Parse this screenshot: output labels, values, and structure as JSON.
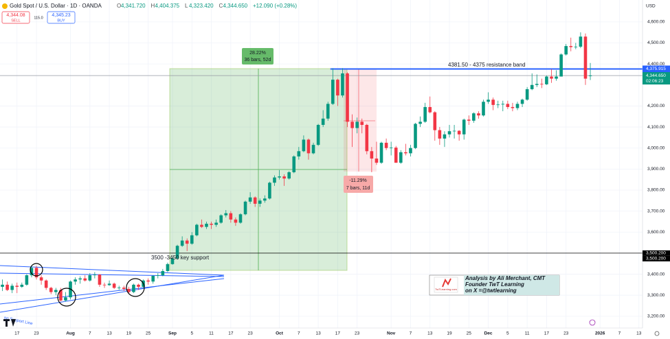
{
  "chart_data": {
    "type": "candlestick",
    "title": "Gold Spot / U.S. Dollar · 1D · OANDA",
    "header_values": [
      {
        "key": "O",
        "label": "4,341.720"
      },
      {
        "key": "H",
        "label": "4,404.375"
      },
      {
        "key": "L",
        "label": "4,323.420"
      },
      {
        "key": "C",
        "label": "4,344.650"
      },
      {
        "key": "",
        "label": "+12.090 (+0.28%)"
      }
    ],
    "trade": {
      "sell_price": "4,344.08",
      "sell": "SELL",
      "spread": "115.0",
      "buy_price": "4,345.23",
      "buy": "BUY"
    },
    "currency": "USD",
    "up_color": "#089981",
    "down_color": "#f23645",
    "xlim": [
      -0.5,
      137.4
    ],
    "ylim": [
      3144,
      4704
    ],
    "xticks": [
      {
        "value": 3,
        "label": "17"
      },
      {
        "value": 7,
        "label": "23"
      },
      {
        "value": 14,
        "label": "Aug"
      },
      {
        "value": 18,
        "label": "7"
      },
      {
        "value": 22,
        "label": "13"
      },
      {
        "value": 26,
        "label": "19"
      },
      {
        "value": 30,
        "label": "25"
      },
      {
        "value": 35,
        "label": "Sep"
      },
      {
        "value": 39,
        "label": "5"
      },
      {
        "value": 43,
        "label": "11"
      },
      {
        "value": 47,
        "label": "17"
      },
      {
        "value": 51,
        "label": "23"
      },
      {
        "value": 57,
        "label": "Oct"
      },
      {
        "value": 61,
        "label": "7"
      },
      {
        "value": 65,
        "label": "13"
      },
      {
        "value": 69,
        "label": "17"
      },
      {
        "value": 73,
        "label": "23"
      },
      {
        "value": 80,
        "label": "Nov"
      },
      {
        "value": 84,
        "label": "7"
      },
      {
        "value": 88,
        "label": "13"
      },
      {
        "value": 92,
        "label": "19"
      },
      {
        "value": 96,
        "label": "25"
      },
      {
        "value": 100,
        "label": "Dec"
      },
      {
        "value": 104,
        "label": "5"
      },
      {
        "value": 108,
        "label": "11"
      },
      {
        "value": 112,
        "label": "17"
      },
      {
        "value": 116,
        "label": "23"
      },
      {
        "value": 123,
        "label": "2026"
      },
      {
        "value": 127,
        "label": "7"
      },
      {
        "value": 131,
        "label": "13"
      }
    ],
    "yticks": [
      {
        "value": 4600,
        "label": "4,600.00"
      },
      {
        "value": 4500,
        "label": "4,500.00"
      },
      {
        "value": 4400,
        "label": "4,400.00"
      },
      {
        "value": 4200,
        "label": "4,200.00"
      },
      {
        "value": 4100,
        "label": "4,100.00"
      },
      {
        "value": 4000,
        "label": "4,000.00"
      },
      {
        "value": 3900,
        "label": "3,900.00"
      },
      {
        "value": 3800,
        "label": "3,800.00"
      },
      {
        "value": 3700,
        "label": "3,700.00"
      },
      {
        "value": 3600,
        "label": "3,600.00"
      },
      {
        "value": 3400,
        "label": "3,400.00"
      },
      {
        "value": 3300,
        "label": "3,300.00"
      },
      {
        "value": 3200,
        "label": "3,200.00"
      }
    ],
    "levels": [
      {
        "value": 4375.915,
        "label": "4,375.915",
        "color": "#2962ff"
      },
      {
        "value": 4344.65,
        "label": "4,344.650",
        "color": "#089981"
      },
      {
        "value": 3500.2,
        "label": "3,500.200",
        "color": "#000000"
      }
    ],
    "countdown": "02:06:23",
    "annotations": {
      "resistance": "4381.50 - 4375 resistance band",
      "support": "3500 -3450 key support",
      "support_line": "ng Support Line",
      "up_pct": "28.22%",
      "up_bars": "36 bars, 52d",
      "down_pct": "-11.29%",
      "down_bars": "7 bars, 11d",
      "credit": [
        "Analysis by Ali Merchant, CMT",
        "Founder TwT Learning",
        "on X =@twtlearning"
      ],
      "logo": "TwTLearning.com"
    },
    "candles": [
      [
        3340,
        3375,
        3320,
        3350
      ],
      [
        3350,
        3365,
        3320,
        3325
      ],
      [
        3325,
        3355,
        3310,
        3345
      ],
      [
        3345,
        3360,
        3310,
        3340
      ],
      [
        3340,
        3360,
        3335,
        3350
      ],
      [
        3350,
        3400,
        3345,
        3395
      ],
      [
        3395,
        3440,
        3385,
        3430
      ],
      [
        3430,
        3440,
        3375,
        3385
      ],
      [
        3385,
        3395,
        3350,
        3370
      ],
      [
        3370,
        3375,
        3325,
        3335
      ],
      [
        3335,
        3340,
        3305,
        3315
      ],
      [
        3315,
        3335,
        3300,
        3325
      ],
      [
        3325,
        3335,
        3270,
        3275
      ],
      [
        3275,
        3315,
        3270,
        3290
      ],
      [
        3290,
        3370,
        3280,
        3365
      ],
      [
        3365,
        3385,
        3350,
        3375
      ],
      [
        3375,
        3390,
        3355,
        3380
      ],
      [
        3380,
        3395,
        3365,
        3370
      ],
      [
        3370,
        3405,
        3365,
        3395
      ],
      [
        3395,
        3410,
        3380,
        3398
      ],
      [
        3398,
        3400,
        3340,
        3350
      ],
      [
        3350,
        3360,
        3335,
        3348
      ],
      [
        3348,
        3370,
        3345,
        3355
      ],
      [
        3355,
        3360,
        3330,
        3335
      ],
      [
        3335,
        3345,
        3325,
        3336
      ],
      [
        3336,
        3345,
        3320,
        3330
      ],
      [
        3330,
        3340,
        3310,
        3315
      ],
      [
        3315,
        3355,
        3310,
        3350
      ],
      [
        3350,
        3355,
        3325,
        3340
      ],
      [
        3340,
        3375,
        3335,
        3370
      ],
      [
        3370,
        3380,
        3350,
        3365
      ],
      [
        3365,
        3395,
        3355,
        3392
      ],
      [
        3392,
        3405,
        3380,
        3395
      ],
      [
        3395,
        3425,
        3390,
        3415
      ],
      [
        3415,
        3455,
        3410,
        3448
      ],
      [
        3448,
        3480,
        3445,
        3475
      ],
      [
        3475,
        3540,
        3470,
        3535
      ],
      [
        3535,
        3580,
        3530,
        3560
      ],
      [
        3560,
        3570,
        3510,
        3545
      ],
      [
        3545,
        3600,
        3540,
        3585
      ],
      [
        3585,
        3640,
        3580,
        3635
      ],
      [
        3635,
        3660,
        3620,
        3625
      ],
      [
        3625,
        3650,
        3615,
        3640
      ],
      [
        3640,
        3650,
        3615,
        3635
      ],
      [
        3635,
        3660,
        3625,
        3645
      ],
      [
        3645,
        3685,
        3640,
        3680
      ],
      [
        3680,
        3705,
        3670,
        3690
      ],
      [
        3690,
        3700,
        3645,
        3660
      ],
      [
        3660,
        3670,
        3630,
        3645
      ],
      [
        3645,
        3690,
        3640,
        3685
      ],
      [
        3685,
        3750,
        3680,
        3745
      ],
      [
        3745,
        3790,
        3735,
        3765
      ],
      [
        3765,
        3770,
        3720,
        3735
      ],
      [
        3735,
        3760,
        3720,
        3750
      ],
      [
        3750,
        3775,
        3740,
        3760
      ],
      [
        3760,
        3840,
        3755,
        3835
      ],
      [
        3835,
        3870,
        3820,
        3860
      ],
      [
        3860,
        3895,
        3850,
        3865
      ],
      [
        3865,
        3875,
        3820,
        3855
      ],
      [
        3855,
        3890,
        3850,
        3885
      ],
      [
        3885,
        3965,
        3880,
        3960
      ],
      [
        3960,
        4005,
        3945,
        3985
      ],
      [
        3985,
        4060,
        3980,
        4040
      ],
      [
        4040,
        4045,
        3945,
        3975
      ],
      [
        3975,
        4025,
        3970,
        4015
      ],
      [
        4015,
        4115,
        4010,
        4110
      ],
      [
        4110,
        4180,
        4100,
        4140
      ],
      [
        4140,
        4220,
        4130,
        4210
      ],
      [
        4210,
        4380,
        4205,
        4325
      ],
      [
        4325,
        4330,
        4200,
        4250
      ],
      [
        4250,
        4380,
        4240,
        4355
      ],
      [
        4355,
        4360,
        4100,
        4125
      ],
      [
        4125,
        4160,
        4005,
        4095
      ],
      [
        4095,
        4145,
        4070,
        4125
      ],
      [
        4125,
        4140,
        4070,
        4110
      ],
      [
        4110,
        4115,
        3970,
        3985
      ],
      [
        3985,
        4005,
        3885,
        3950
      ],
      [
        3950,
        4030,
        3920,
        3930
      ],
      [
        3930,
        4030,
        3925,
        4025
      ],
      [
        4025,
        4045,
        3990,
        4000
      ],
      [
        4000,
        4030,
        3965,
        4002
      ],
      [
        4002,
        4010,
        3930,
        3930
      ],
      [
        3930,
        3990,
        3925,
        3980
      ],
      [
        3980,
        4020,
        3965,
        3975
      ],
      [
        3975,
        4015,
        3960,
        4000
      ],
      [
        4000,
        4120,
        3995,
        4115
      ],
      [
        4115,
        4150,
        4100,
        4125
      ],
      [
        4125,
        4215,
        4120,
        4195
      ],
      [
        4195,
        4245,
        4165,
        4170
      ],
      [
        4170,
        4175,
        4035,
        4085
      ],
      [
        4085,
        4100,
        4015,
        4045
      ],
      [
        4045,
        4080,
        4005,
        4065
      ],
      [
        4065,
        4110,
        4050,
        4080
      ],
      [
        4080,
        4110,
        4045,
        4082
      ],
      [
        4082,
        4085,
        4035,
        4065
      ],
      [
        4065,
        4140,
        4040,
        4135
      ],
      [
        4135,
        4155,
        4110,
        4130
      ],
      [
        4130,
        4170,
        4120,
        4165
      ],
      [
        4165,
        4175,
        4140,
        4155
      ],
      [
        4155,
        4230,
        4150,
        4220
      ],
      [
        4220,
        4265,
        4210,
        4230
      ],
      [
        4230,
        4240,
        4180,
        4205
      ],
      [
        4205,
        4225,
        4190,
        4207
      ],
      [
        4207,
        4225,
        4175,
        4210
      ],
      [
        4210,
        4225,
        4185,
        4195
      ],
      [
        4195,
        4215,
        4175,
        4190
      ],
      [
        4190,
        4220,
        4180,
        4210
      ],
      [
        4210,
        4235,
        4195,
        4230
      ],
      [
        4230,
        4290,
        4225,
        4280
      ],
      [
        4280,
        4355,
        4275,
        4300
      ],
      [
        4300,
        4350,
        4290,
        4305
      ],
      [
        4305,
        4330,
        4285,
        4303
      ],
      [
        4303,
        4345,
        4300,
        4340
      ],
      [
        4340,
        4375,
        4310,
        4330
      ],
      [
        4330,
        4370,
        4320,
        4340
      ],
      [
        4340,
        4450,
        4340,
        4445
      ],
      [
        4445,
        4495,
        4440,
        4485
      ],
      [
        4485,
        4525,
        4460,
        4480
      ],
      [
        4480,
        4500,
        4470,
        4482
      ],
      [
        4482,
        4550,
        4475,
        4530
      ],
      [
        4530,
        4545,
        4300,
        4330
      ],
      [
        4341.72,
        4404.375,
        4323.42,
        4344.65
      ]
    ]
  }
}
